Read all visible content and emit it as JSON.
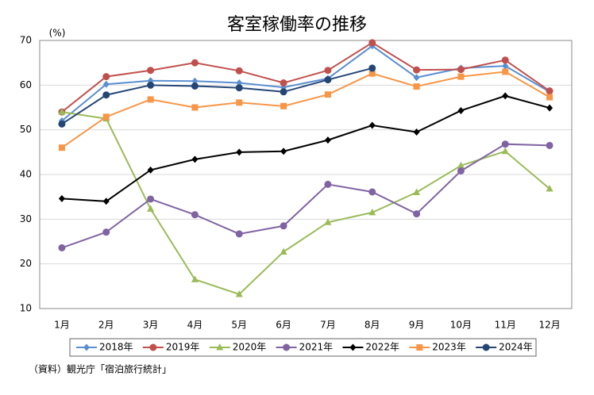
{
  "chart_data": {
    "type": "line",
    "title": "客室稼働率の推移",
    "y_label": "(%)",
    "source": "（資料）観光庁「宿泊旅行統計」",
    "categories": [
      "1月",
      "2月",
      "3月",
      "4月",
      "5月",
      "6月",
      "7月",
      "8月",
      "9月",
      "10月",
      "11月",
      "12月"
    ],
    "ylim": [
      10,
      70
    ],
    "yticks": [
      10,
      20,
      30,
      40,
      50,
      60,
      70
    ],
    "grid": true,
    "legend": "bottom",
    "series": [
      {
        "name": "2018年",
        "color": "#5b8fcf",
        "marker": "diamond",
        "values": [
          52,
          60.2,
          61,
          60.9,
          60.5,
          59.5,
          61.5,
          68.8,
          61.7,
          63.8,
          64.3,
          58.5
        ]
      },
      {
        "name": "2019年",
        "color": "#c0504d",
        "marker": "circle",
        "values": [
          54,
          61.9,
          63.3,
          65,
          63.2,
          60.5,
          63.3,
          69.5,
          63.4,
          63.5,
          65.6,
          58.7
        ]
      },
      {
        "name": "2020年",
        "color": "#9bbb59",
        "marker": "triangle",
        "values": [
          54,
          52.5,
          32.3,
          16.5,
          13.2,
          22.7,
          29.3,
          31.5,
          36,
          42,
          45.2,
          36.8
        ]
      },
      {
        "name": "2021年",
        "color": "#8064a2",
        "marker": "circle",
        "values": [
          23.6,
          27.1,
          34.5,
          31,
          26.7,
          28.5,
          37.8,
          36.1,
          31.2,
          40.8,
          46.8,
          46.5
        ]
      },
      {
        "name": "2022年",
        "color": "#000000",
        "marker": "diamond",
        "values": [
          34.6,
          34,
          41,
          43.4,
          45,
          45.2,
          47.7,
          51,
          49.5,
          54.3,
          57.6,
          54.9
        ]
      },
      {
        "name": "2023年",
        "color": "#f79646",
        "marker": "square",
        "values": [
          46,
          52.9,
          56.8,
          55,
          56.1,
          55.3,
          57.9,
          62.6,
          59.7,
          61.9,
          63,
          57.3
        ]
      },
      {
        "name": "2024年",
        "color": "#254675",
        "marker": "circle",
        "values": [
          51.3,
          57.8,
          60,
          59.8,
          59.4,
          58.5,
          61.2,
          63.8,
          null,
          null,
          null,
          null
        ]
      }
    ]
  }
}
